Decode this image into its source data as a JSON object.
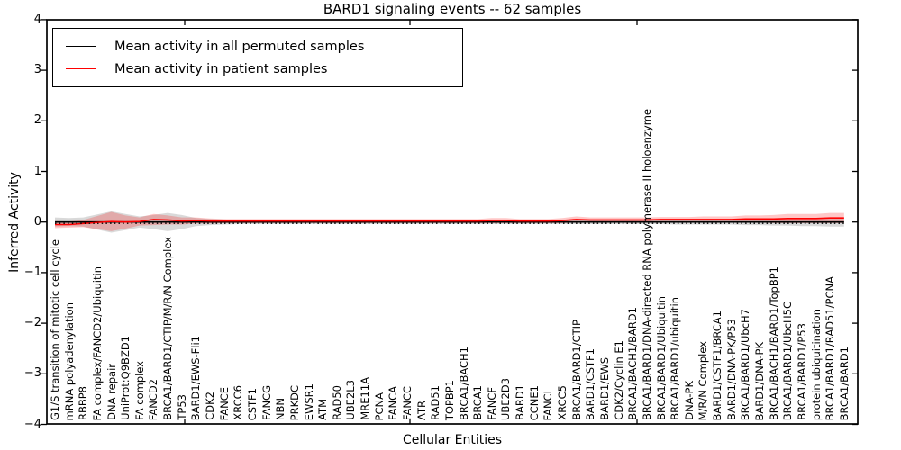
{
  "title": "BARD1 signaling events -- 62 samples",
  "chart_data": {
    "type": "line",
    "title": "BARD1 signaling events -- 62 samples",
    "xlabel": "Cellular Entities",
    "ylabel": "Inferred Activity",
    "ylim": [
      -4,
      4
    ],
    "yticks": [
      4,
      3,
      2,
      1,
      0,
      -1,
      -2,
      -3,
      -4
    ],
    "ytick_labels": [
      "4",
      "3",
      "2",
      "1",
      "0",
      "−1",
      "−2",
      "−3",
      "−4"
    ],
    "grid": false,
    "legend_position": "upper left",
    "zero_reference_line": "dotted",
    "categories": [
      "G1/S transition of mitotic cell cycle",
      "mRNA polyadenylation",
      "RBBP8",
      "FA complex/FANCD2/Ubiquitin",
      "DNA repair",
      "UniProt:Q9BZD1",
      "FA complex",
      "FANCD2",
      "BRCA1/BARD1/CTIP/M/R/N Complex",
      "TP53",
      "BARD1/EWS-Fli1",
      "CDK2",
      "FANCE",
      "XRCC6",
      "CSTF1",
      "FANCG",
      "NBN",
      "PRKDC",
      "EWSR1",
      "ATM",
      "RAD50",
      "UBE2L3",
      "MRE11A",
      "PCNA",
      "FANCA",
      "FANCC",
      "ATR",
      "RAD51",
      "TOPBP1",
      "BRCA1/BACH1",
      "BRCA1",
      "FANCF",
      "UBE2D3",
      "BARD1",
      "CCNE1",
      "FANCL",
      "XRCC5",
      "BRCA1/BARD1/CTIP",
      "BARD1/CSTF1",
      "BARD1/EWS",
      "CDK2/Cyclin E1",
      "BRCA1/BACH1/BARD1",
      "BRCA1/BARD1/DNA-directed RNA polymerase II holoenzyme",
      "BRCA1/BARD1/Ubiquitin",
      "BRCA1/BARD1/ubiquitin",
      "DNA-PK",
      "M/R/N Complex",
      "BARD1/CSTF1/BRCA1",
      "BARD1/DNA-PK/P53",
      "BRCA1/BARD1/UbcH7",
      "BARD1/DNA-PK",
      "BRCA1/BACH1/BARD1/TopBP1",
      "BRCA1/BARD1/UbcH5C",
      "BRCA1/BARD1/P53",
      "protein ubiquitination",
      "BRCA1/BARD1/RAD51/PCNA",
      "BRCA1/BARD1"
    ],
    "series": [
      {
        "name": "Mean activity in all permuted samples",
        "color": "#000000",
        "line_style": "solid",
        "band_color": "#000000",
        "band_opacity": 0.15,
        "values": [
          0,
          0,
          0,
          0,
          0,
          0,
          0,
          0,
          0,
          0,
          0,
          0,
          0,
          0,
          0,
          0,
          0,
          0,
          0,
          0,
          0,
          0,
          0,
          0,
          0,
          0,
          0,
          0,
          0,
          0,
          0,
          0,
          0,
          0,
          0,
          0,
          0,
          0,
          0,
          0,
          0,
          0,
          0,
          0,
          0,
          0,
          0,
          0,
          0,
          0,
          0,
          0,
          0,
          0,
          0,
          0,
          0
        ],
        "band_halfwidth": [
          0.09,
          0.08,
          0.09,
          0.15,
          0.21,
          0.16,
          0.11,
          0.14,
          0.18,
          0.14,
          0.08,
          0.06,
          0.05,
          0.04,
          0.04,
          0.04,
          0.04,
          0.04,
          0.04,
          0.04,
          0.04,
          0.04,
          0.04,
          0.04,
          0.04,
          0.04,
          0.04,
          0.04,
          0.04,
          0.04,
          0.04,
          0.04,
          0.04,
          0.04,
          0.04,
          0.04,
          0.04,
          0.04,
          0.04,
          0.04,
          0.04,
          0.04,
          0.04,
          0.04,
          0.05,
          0.05,
          0.05,
          0.05,
          0.05,
          0.06,
          0.06,
          0.07,
          0.07,
          0.08,
          0.08,
          0.09,
          0.09
        ]
      },
      {
        "name": "Mean activity in patient samples",
        "color": "#ff0000",
        "line_style": "solid",
        "band_color": "#ff0000",
        "band_opacity": 0.22,
        "values": [
          -0.05,
          -0.05,
          -0.03,
          -0.01,
          0.01,
          0.0,
          0.01,
          0.05,
          0.04,
          0.02,
          0.03,
          0.02,
          0.02,
          0.02,
          0.02,
          0.02,
          0.02,
          0.02,
          0.02,
          0.02,
          0.02,
          0.02,
          0.02,
          0.02,
          0.02,
          0.02,
          0.02,
          0.02,
          0.02,
          0.02,
          0.02,
          0.03,
          0.03,
          0.02,
          0.02,
          0.02,
          0.03,
          0.05,
          0.04,
          0.04,
          0.04,
          0.04,
          0.04,
          0.05,
          0.05,
          0.05,
          0.05,
          0.05,
          0.05,
          0.06,
          0.06,
          0.06,
          0.07,
          0.07,
          0.07,
          0.08,
          0.08
        ],
        "band_halfwidth": [
          0.07,
          0.06,
          0.07,
          0.13,
          0.19,
          0.13,
          0.08,
          0.11,
          0.09,
          0.07,
          0.06,
          0.05,
          0.04,
          0.04,
          0.04,
          0.04,
          0.04,
          0.04,
          0.04,
          0.04,
          0.04,
          0.04,
          0.04,
          0.04,
          0.04,
          0.04,
          0.04,
          0.04,
          0.04,
          0.04,
          0.04,
          0.05,
          0.05,
          0.04,
          0.04,
          0.04,
          0.05,
          0.06,
          0.05,
          0.05,
          0.05,
          0.05,
          0.05,
          0.05,
          0.05,
          0.05,
          0.06,
          0.06,
          0.06,
          0.07,
          0.07,
          0.08,
          0.09,
          0.09,
          0.09,
          0.1,
          0.1
        ]
      }
    ]
  }
}
